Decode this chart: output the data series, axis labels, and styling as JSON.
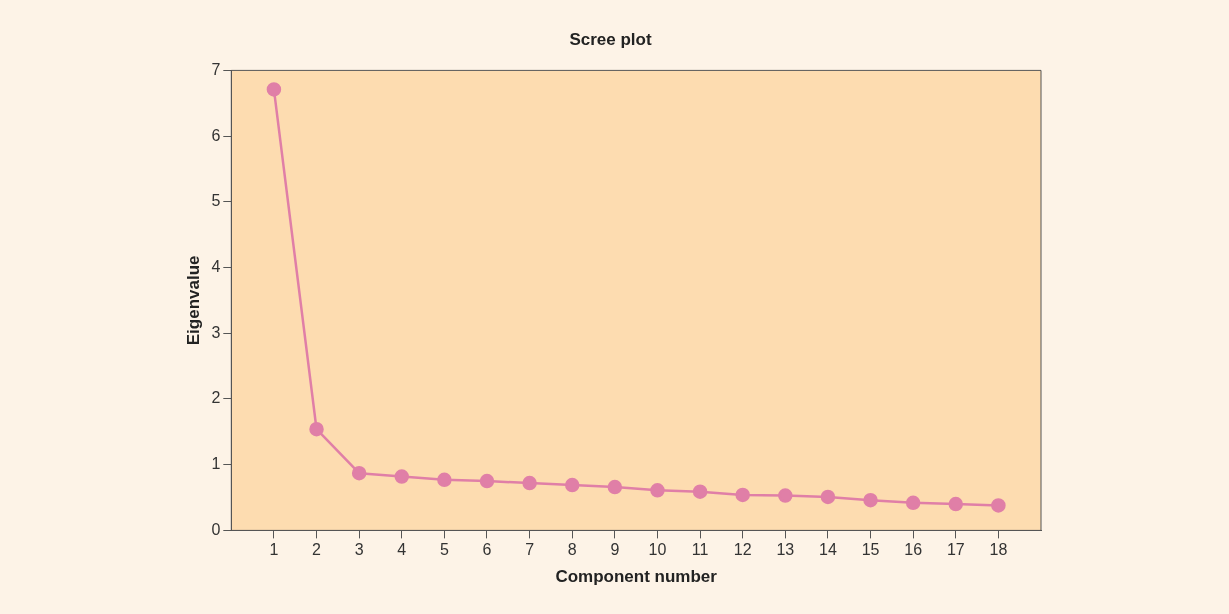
{
  "chart_data": {
    "type": "line",
    "title": "Scree plot",
    "xlabel": "Component number",
    "ylabel": "Eigenvalue",
    "x": [
      1,
      2,
      3,
      4,
      5,
      6,
      7,
      8,
      9,
      10,
      11,
      12,
      13,
      14,
      15,
      16,
      17,
      18
    ],
    "series": [
      {
        "color": "#e07fa7",
        "values": [
          6.71,
          1.54,
          0.87,
          0.82,
          0.77,
          0.75,
          0.72,
          0.69,
          0.66,
          0.61,
          0.59,
          0.54,
          0.53,
          0.51,
          0.46,
          0.42,
          0.4,
          0.38
        ]
      }
    ],
    "xlim": [
      0,
      19
    ],
    "xticks": [
      1,
      2,
      3,
      4,
      5,
      6,
      7,
      8,
      9,
      10,
      11,
      12,
      13,
      14,
      15,
      16,
      17,
      18
    ],
    "ylim": [
      0,
      7
    ],
    "yticks": [
      0,
      1,
      2,
      3,
      4,
      5,
      6,
      7
    ],
    "grid": false,
    "legend": false,
    "marker": "circle",
    "line_style": "solid"
  }
}
